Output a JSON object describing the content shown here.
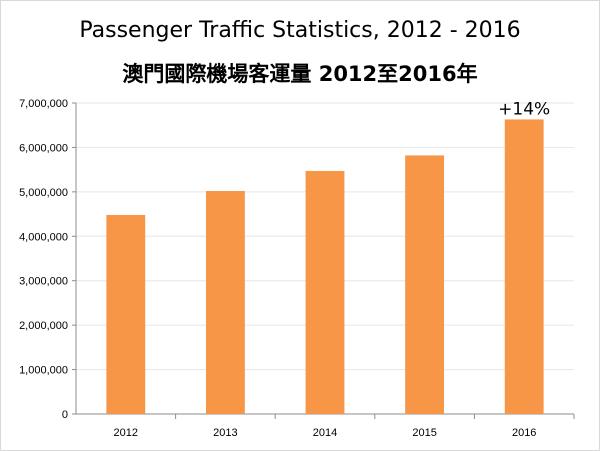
{
  "title": "Passenger Traffic Statistics, 2012 -  2016",
  "subtitle": "澳門國際機場客運量 2012至2016年",
  "colors": {
    "bar": "#f79646",
    "grid": "#e6e6e6",
    "axis": "#8c8c8c"
  },
  "chart_data": {
    "type": "bar",
    "categories": [
      "2012",
      "2013",
      "2014",
      "2015",
      "2016"
    ],
    "values": [
      4480000,
      5020000,
      5470000,
      5820000,
      6630000
    ],
    "ylim": [
      0,
      7000000
    ],
    "yticks": [
      0,
      1000000,
      2000000,
      3000000,
      4000000,
      5000000,
      6000000,
      7000000
    ],
    "ytick_labels": [
      "0",
      "1,000,000",
      "2,000,000",
      "3,000,000",
      "4,000,000",
      "5,000,000",
      "6,000,000",
      "7,000,000"
    ],
    "grid": true,
    "legend": false,
    "annotations": [
      {
        "category": "2016",
        "text": "+14%"
      }
    ]
  }
}
